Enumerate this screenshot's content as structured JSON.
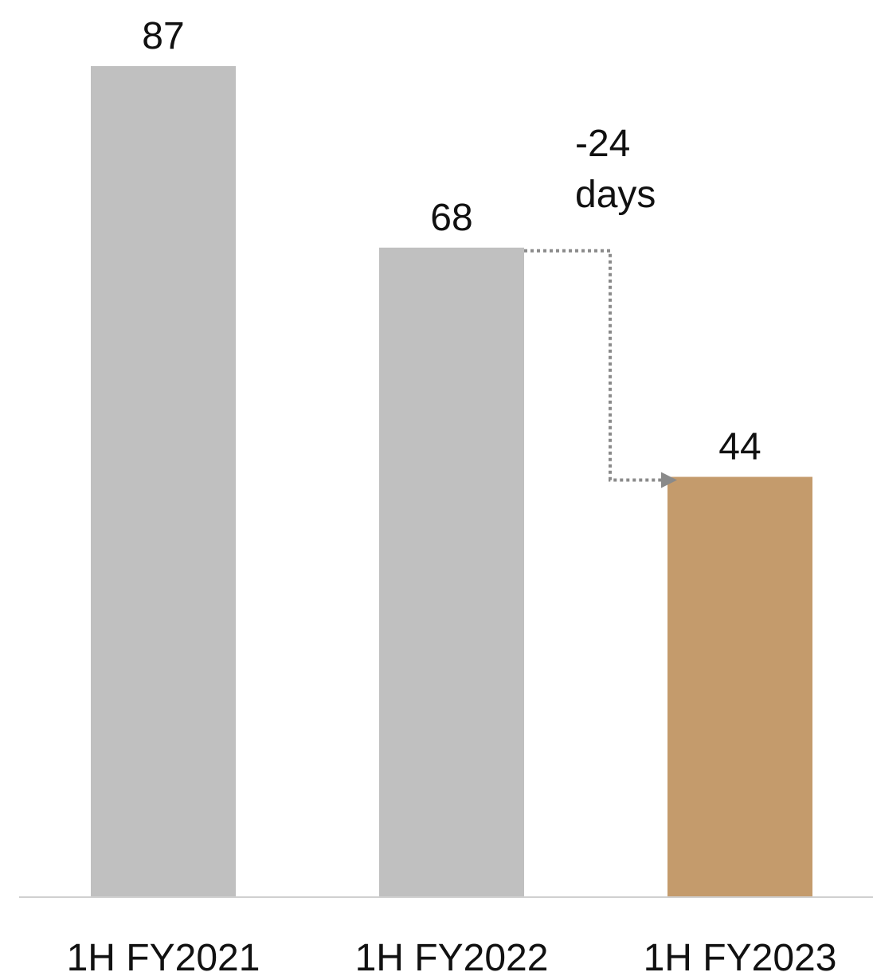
{
  "chart_data": {
    "type": "bar",
    "categories": [
      "1H FY2021",
      "1H FY2022",
      "1H FY2023"
    ],
    "values": [
      87,
      68,
      44
    ],
    "value_labels": [
      "87",
      "68",
      "44"
    ],
    "bar_colors": [
      "#c0c0c0",
      "#c0c0c0",
      "#c49b6c"
    ],
    "axis_color": "#d0d0d0",
    "annotation": {
      "line1": "-24",
      "line2": "days",
      "from_category": "1H FY2022",
      "to_category": "1H FY2023",
      "style": "dotted-arrow",
      "color": "#8a8a8a"
    },
    "title": "",
    "xlabel": "",
    "ylabel": "",
    "ylim": [
      0,
      87
    ],
    "grid": false,
    "legend": "none"
  }
}
